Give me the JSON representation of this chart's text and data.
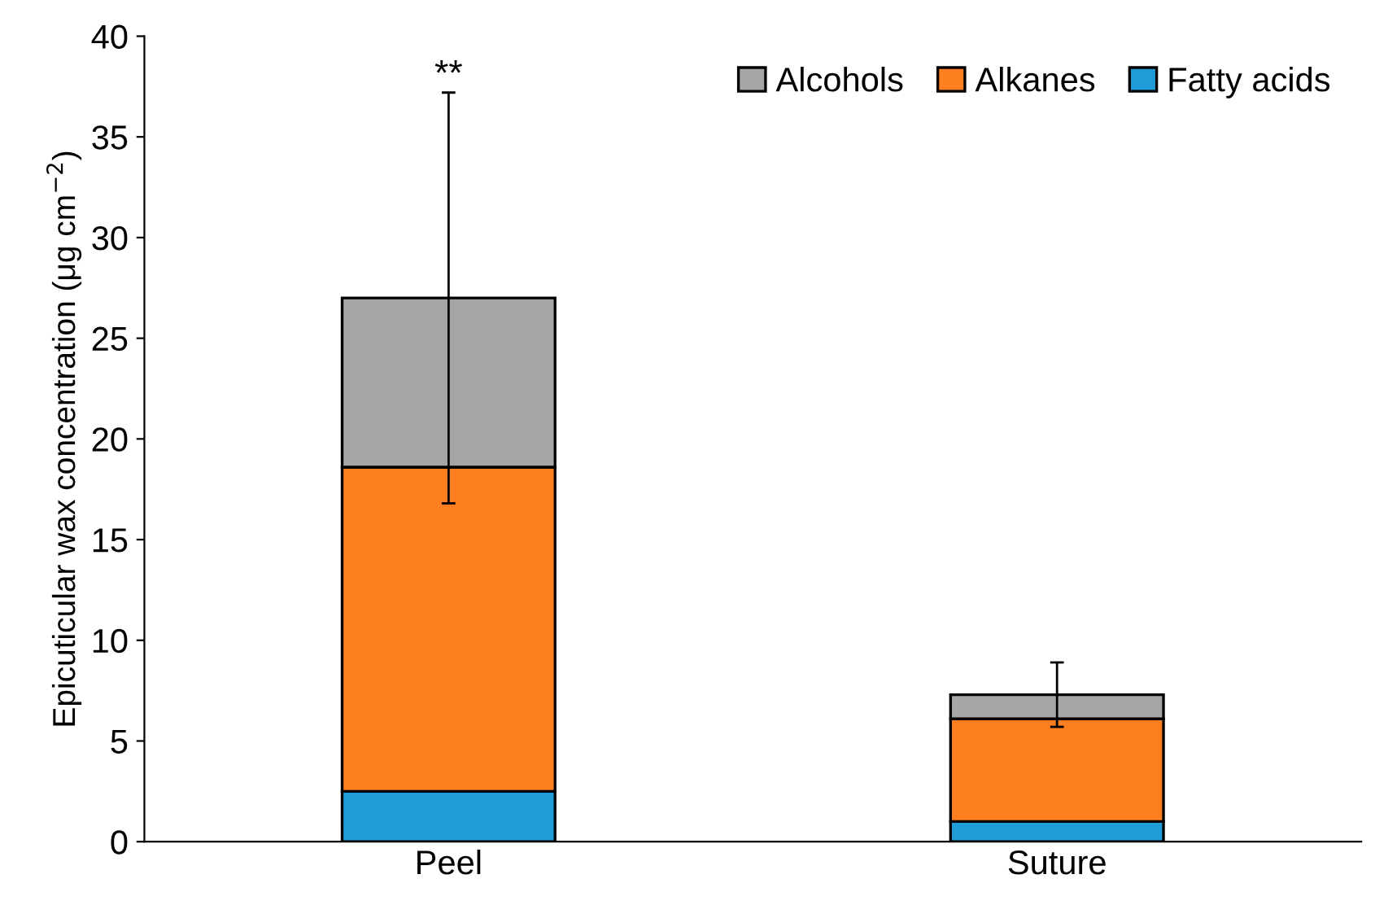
{
  "chart_data": {
    "type": "bar",
    "stacked": true,
    "ylabel": "Epicuticular wax concentration (μg cm$^{−2}$)",
    "categories": [
      "Peel",
      "Suture"
    ],
    "series": [
      {
        "name": "Fatty acids",
        "color": "#1f9bd7",
        "values": [
          2.5,
          1.0
        ]
      },
      {
        "name": "Alkanes",
        "color": "#fd7f20",
        "values": [
          16.1,
          5.1
        ]
      },
      {
        "name": "Alcohols",
        "color": "#a6a6a6",
        "values": [
          8.4,
          1.2
        ],
        "errors": [
          10.2,
          1.6
        ]
      }
    ],
    "annotations": [
      {
        "text": "**",
        "x": "Peel",
        "y": 37.2
      }
    ],
    "ylim": [
      0,
      40
    ],
    "yticks": [
      0,
      5,
      10,
      15,
      20,
      25,
      30,
      35,
      40
    ],
    "grid": false,
    "legend": "top right"
  }
}
